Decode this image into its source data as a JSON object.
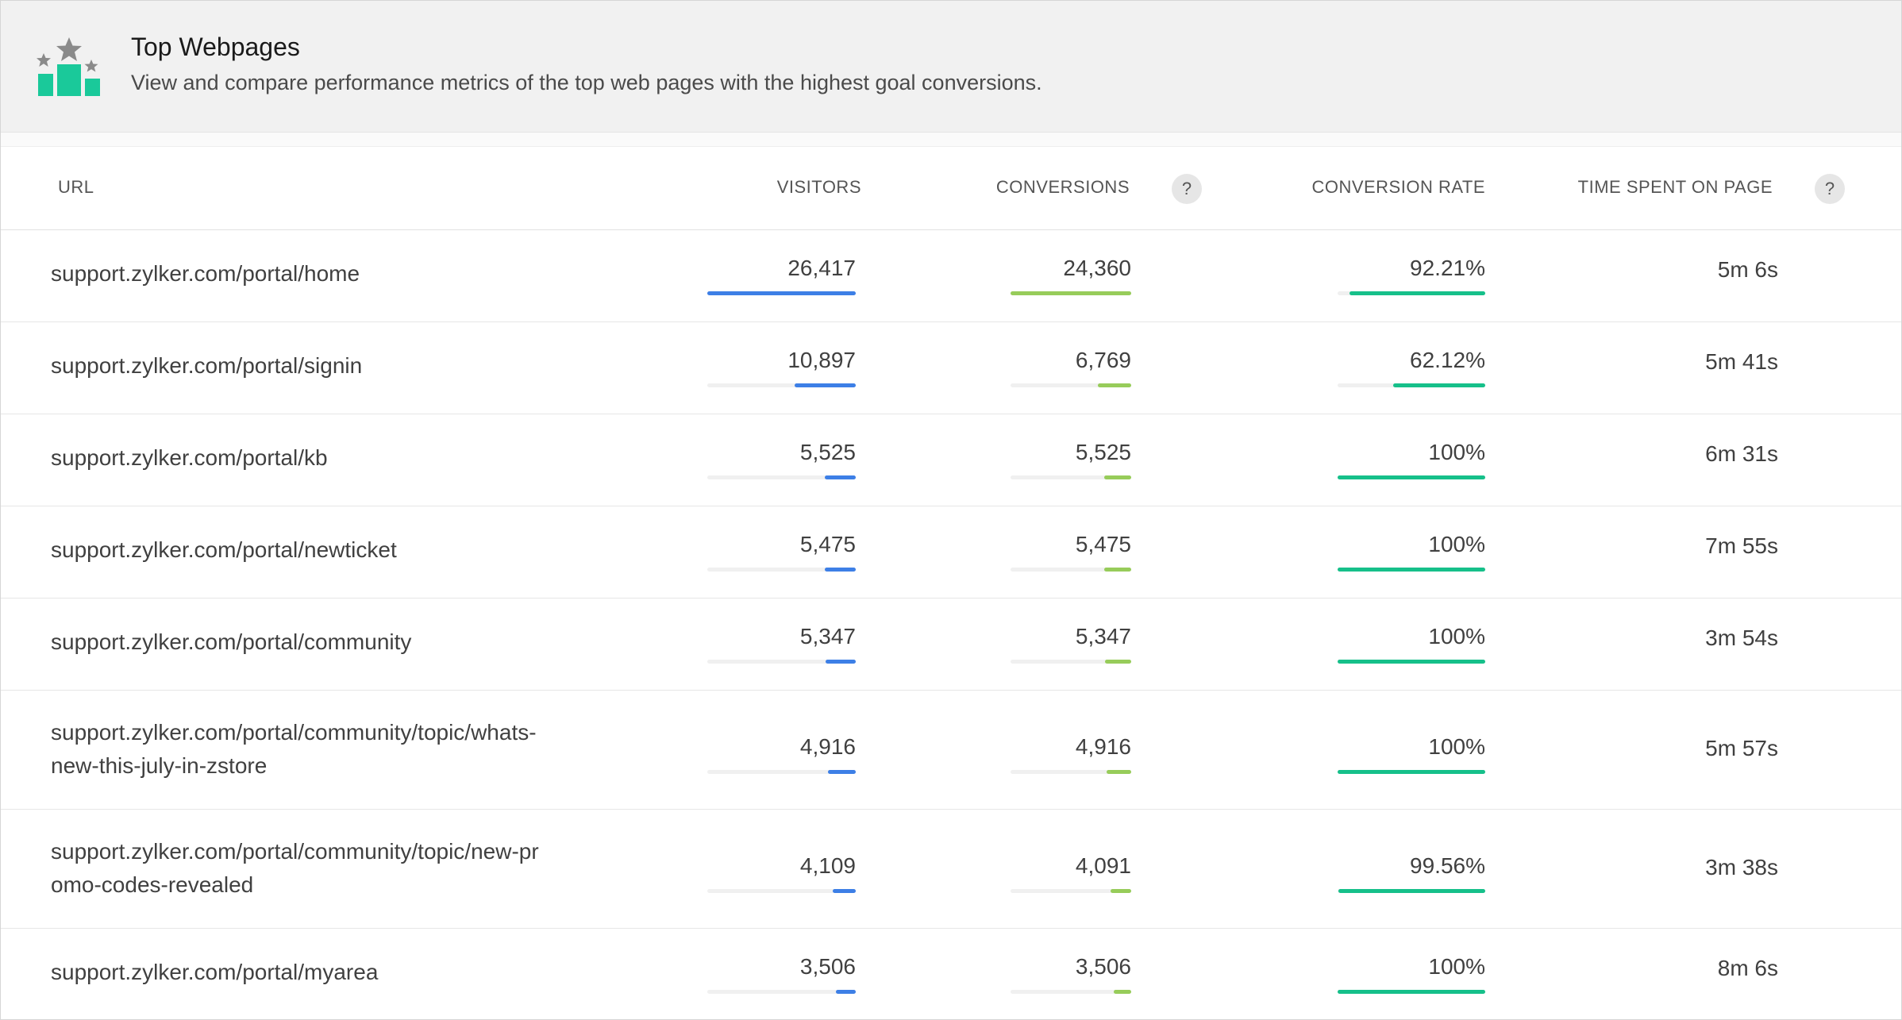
{
  "widget": {
    "title": "Top Webpages",
    "subtitle": "View and compare performance metrics of the top web pages with the highest goal conversions.",
    "icon": "podium-stars-icon",
    "icon_color": "#1ac99a",
    "star_color": "#8a8a8a"
  },
  "columns": {
    "url": "URL",
    "visitors": "VISITORS",
    "conversions": "CONVERSIONS",
    "conversion_rate": "CONVERSION RATE",
    "time_spent": "TIME SPENT ON PAGE",
    "help_glyph": "?"
  },
  "colors": {
    "visitors_bar": "#3d7fe6",
    "conversions_bar": "#97cc5a",
    "rate_bar": "#16c08a"
  },
  "rows": [
    {
      "url": "support.zylker.com/portal/home",
      "visitors": "26,417",
      "visitors_value": 26417,
      "conversions": "24,360",
      "conversions_value": 24360,
      "rate": "92.21%",
      "rate_value": 92.21,
      "time": "5m 6s"
    },
    {
      "url": "support.zylker.com/portal/signin",
      "visitors": "10,897",
      "visitors_value": 10897,
      "conversions": "6,769",
      "conversions_value": 6769,
      "rate": "62.12%",
      "rate_value": 62.12,
      "time": "5m 41s"
    },
    {
      "url": "support.zylker.com/portal/kb",
      "visitors": "5,525",
      "visitors_value": 5525,
      "conversions": "5,525",
      "conversions_value": 5525,
      "rate": "100%",
      "rate_value": 100,
      "time": "6m 31s"
    },
    {
      "url": "support.zylker.com/portal/newticket",
      "visitors": "5,475",
      "visitors_value": 5475,
      "conversions": "5,475",
      "conversions_value": 5475,
      "rate": "100%",
      "rate_value": 100,
      "time": "7m 55s"
    },
    {
      "url": "support.zylker.com/portal/community",
      "visitors": "5,347",
      "visitors_value": 5347,
      "conversions": "5,347",
      "conversions_value": 5347,
      "rate": "100%",
      "rate_value": 100,
      "time": "3m 54s"
    },
    {
      "url": "support.zylker.com/portal/community/topic/whats-new-this-july-in-zstore",
      "visitors": "4,916",
      "visitors_value": 4916,
      "conversions": "4,916",
      "conversions_value": 4916,
      "rate": "100%",
      "rate_value": 100,
      "time": "5m 57s"
    },
    {
      "url": "support.zylker.com/portal/community/topic/new-promo-codes-revealed",
      "visitors": "4,109",
      "visitors_value": 4109,
      "conversions": "4,091",
      "conversions_value": 4091,
      "rate": "99.56%",
      "rate_value": 99.56,
      "time": "3m 38s"
    },
    {
      "url": "support.zylker.com/portal/myarea",
      "visitors": "3,506",
      "visitors_value": 3506,
      "conversions": "3,506",
      "conversions_value": 3506,
      "rate": "100%",
      "rate_value": 100,
      "time": "8m 6s"
    }
  ]
}
